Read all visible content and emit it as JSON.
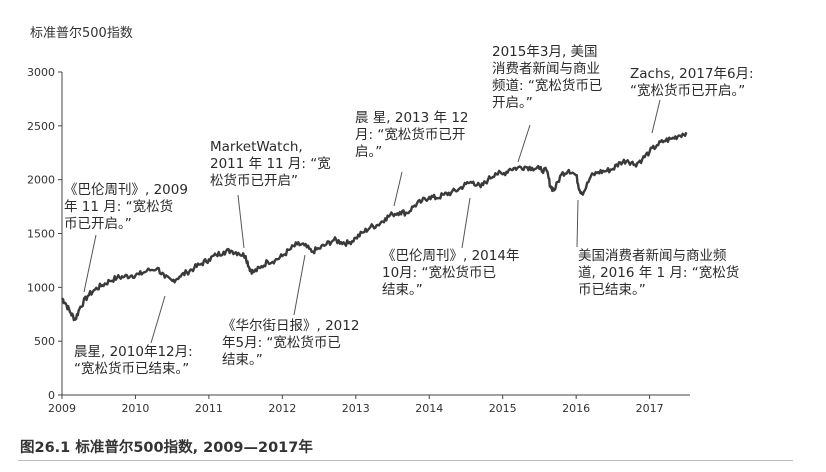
{
  "chart_data": {
    "type": "line",
    "title": "",
    "ylabel": "标准普尔500指数",
    "xlabel": "",
    "ylim": [
      0,
      3000
    ],
    "xlim": [
      2009.0,
      2017.55
    ],
    "yticks": [
      "0",
      "500",
      "1000",
      "1500",
      "2000",
      "2500",
      "3000"
    ],
    "xticks": [
      "2009",
      "2010",
      "2011",
      "2012",
      "2013",
      "2014",
      "2015",
      "2016",
      "2017"
    ],
    "grid": false,
    "line_color": "#3a3a3a",
    "series": [
      {
        "x": [
          2009.0,
          2009.05,
          2009.12,
          2009.18,
          2009.25,
          2009.35,
          2009.45,
          2009.55,
          2009.65,
          2009.75,
          2009.85,
          2009.95,
          2010.05,
          2010.15,
          2010.3,
          2010.4,
          2010.5,
          2010.6,
          2010.7,
          2010.8,
          2010.9,
          2011.0,
          2011.1,
          2011.2,
          2011.3,
          2011.4,
          2011.5,
          2011.55,
          2011.6,
          2011.7,
          2011.8,
          2011.9,
          2012.0,
          2012.1,
          2012.2,
          2012.3,
          2012.4,
          2012.5,
          2012.6,
          2012.7,
          2012.8,
          2012.9,
          2013.0,
          2013.1,
          2013.2,
          2013.3,
          2013.4,
          2013.5,
          2013.6,
          2013.7,
          2013.8,
          2013.9,
          2014.0,
          2014.1,
          2014.2,
          2014.3,
          2014.4,
          2014.5,
          2014.6,
          2014.7,
          2014.8,
          2014.9,
          2015.0,
          2015.1,
          2015.2,
          2015.3,
          2015.4,
          2015.5,
          2015.6,
          2015.65,
          2015.7,
          2015.8,
          2015.9,
          2016.0,
          2016.05,
          2016.1,
          2016.2,
          2016.3,
          2016.4,
          2016.5,
          2016.6,
          2016.7,
          2016.8,
          2016.9,
          2017.0,
          2017.1,
          2017.2,
          2017.3,
          2017.4,
          2017.5
        ],
        "values": [
          900,
          850,
          760,
          700,
          820,
          920,
          980,
          1020,
          1060,
          1090,
          1100,
          1110,
          1120,
          1150,
          1180,
          1090,
          1060,
          1100,
          1140,
          1180,
          1220,
          1260,
          1300,
          1330,
          1340,
          1320,
          1290,
          1180,
          1140,
          1180,
          1240,
          1250,
          1290,
          1350,
          1400,
          1390,
          1330,
          1360,
          1400,
          1440,
          1420,
          1410,
          1460,
          1510,
          1560,
          1580,
          1640,
          1680,
          1700,
          1690,
          1760,
          1800,
          1840,
          1830,
          1860,
          1880,
          1910,
          1960,
          1980,
          1930,
          2000,
          2060,
          2050,
          2100,
          2110,
          2120,
          2110,
          2100,
          2080,
          1940,
          1900,
          2050,
          2090,
          2040,
          1900,
          1880,
          2030,
          2070,
          2080,
          2100,
          2160,
          2180,
          2140,
          2190,
          2260,
          2320,
          2360,
          2380,
          2410,
          2440
        ]
      }
    ]
  },
  "annotations": [
    {
      "id": "barrons-2009",
      "text": "《巴伦周刊》, 2009\n年 11 月: “宽松货\n币已开启。”"
    },
    {
      "id": "morningstar-2010",
      "text": "晨星, 2010年12月:\n“宽松货币已结束。”"
    },
    {
      "id": "marketwatch-2011",
      "text": "MarketWatch,\n2011 年 11 月: “宽\n松货币已开启”"
    },
    {
      "id": "wsj-2012",
      "text": "《华尔街日报》, 2012\n年5月: “宽松货币已\n结束。”"
    },
    {
      "id": "morningstar-2013",
      "text": "晨 星, 2013 年 12\n月: “宽松货币已开\n启。”"
    },
    {
      "id": "barrons-2014",
      "text": "《巴伦周刊》, 2014年\n10月: “宽松货币已\n结束。”"
    },
    {
      "id": "usnews-2015",
      "text": "2015年3月, 美国\n消费者新闻与商业\n频道: “宽松货币已\n开启。”"
    },
    {
      "id": "usnews-2016",
      "text": "美国消费者新闻与商业频\n道, 2016 年 1 月: “宽松货\n币已结束。”"
    },
    {
      "id": "zachs-2017",
      "text": "Zachs, 2017年6月:\n“宽松货币已开启。”"
    }
  ],
  "caption": "图26.1   标准普尔500指数, 2009—2017年"
}
